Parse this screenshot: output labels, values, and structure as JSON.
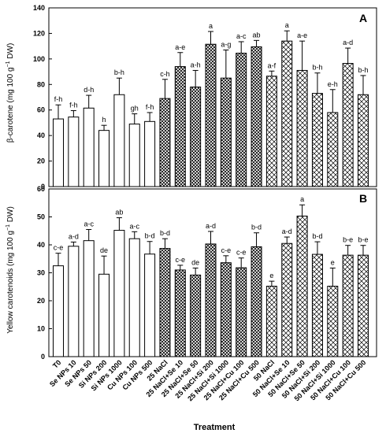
{
  "colors": {
    "axis": "#000000",
    "bar_fill": "#ffffff",
    "pattern": "#000000"
  },
  "fill_groups": [
    "open",
    "open",
    "open",
    "open",
    "open",
    "open",
    "open",
    "dense-crosshatch",
    "dense-crosshatch",
    "dense-crosshatch",
    "dense-crosshatch",
    "dense-crosshatch",
    "dense-crosshatch",
    "dense-crosshatch",
    "sparse-crosshatch",
    "sparse-crosshatch",
    "sparse-crosshatch",
    "sparse-crosshatch",
    "sparse-crosshatch",
    "sparse-crosshatch",
    "sparse-crosshatch"
  ],
  "chart_data": [
    {
      "type": "bar",
      "panel_label": "A",
      "ylabel_main": "β-carotene (mg 100 g",
      "ylabel_sup": "−1",
      "ylabel_tail": " DW)",
      "ylim": [
        0,
        140
      ],
      "yticks": [
        "0",
        "20",
        "40",
        "60",
        "80",
        "100",
        "120",
        "140"
      ],
      "tick_values": [
        0,
        20,
        40,
        60,
        80,
        100,
        120,
        140
      ],
      "categories": [
        "T0",
        "Se NPs 10",
        "Se NPs 50",
        "Si NPs 200",
        "Si NPs 1000",
        "Cu NPs 100",
        "Cu NPs 500",
        "25 NaCl",
        "25 NaCl+Se 10",
        "25 NaCl+Se 50",
        "25 NaCl+Si 200",
        "25 NaCl+Si 1000",
        "25 NaCl+Cu 100",
        "25 NaCl+Cu 500",
        "50 NaCl",
        "50 NaCl+Se 10",
        "50 NaCl+Se 50",
        "50 NaCl+Si 200",
        "50 NaCl+Si 1000",
        "50 NaCl+Cu 100",
        "50 NaCl+Cu 500"
      ],
      "values": [
        53,
        54.5,
        61.5,
        44,
        72,
        49,
        51,
        69,
        94,
        78,
        111.5,
        85,
        104.5,
        109.5,
        86.5,
        114,
        91,
        73,
        58,
        96.5,
        72
      ],
      "errors": [
        11,
        5,
        10,
        4,
        13,
        8,
        7,
        15,
        11,
        13,
        10,
        22,
        9,
        5,
        4,
        8,
        23,
        16,
        18,
        12,
        15
      ],
      "letters": [
        "f-h",
        "f-h",
        "d-h",
        "h",
        "b-h",
        "gh",
        "f-h",
        "c-h",
        "a-e",
        "a-h",
        "a",
        "a-g",
        "a-c",
        "ab",
        "a-f",
        "a",
        "a-e",
        "b-h",
        "e-h",
        "a-d",
        "b-h"
      ]
    },
    {
      "type": "bar",
      "panel_label": "B",
      "ylabel_main": "Yellow carotenoids (mg 100 g",
      "ylabel_sup": "−1",
      "ylabel_tail": " DW)",
      "xlabel": "Treatment",
      "ylim": [
        0,
        60
      ],
      "yticks": [
        "0",
        "10",
        "20",
        "30",
        "40",
        "50",
        "60"
      ],
      "tick_values": [
        0,
        10,
        20,
        30,
        40,
        50,
        60
      ],
      "categories": [
        "T0",
        "Se NPs 10",
        "Se NPs 50",
        "Si NPs 200",
        "Si NPs 1000",
        "Cu NPs 100",
        "Cu NPs 500",
        "25 NaCl",
        "25 NaCl+Se 10",
        "25 NaCl+Se 50",
        "25 NaCl+Si 200",
        "25 NaCl+Si 1000",
        "25 NaCl+Cu 100",
        "25 NaCl+Cu 500",
        "50 NaCl",
        "50 NaCl+Se 10",
        "50 NaCl+Se 50",
        "50 NaCl+Si 200",
        "50 NaCl+Si 1000",
        "50 NaCl+Cu 100",
        "50 NaCl+Cu 500"
      ],
      "values": [
        32.5,
        39.5,
        41.5,
        29.5,
        45.2,
        42.2,
        36.7,
        38.7,
        31,
        29.2,
        40.3,
        33.6,
        31.8,
        39.3,
        25.2,
        40.5,
        50.3,
        36.6,
        25.2,
        36.3,
        36.3
      ],
      "errors": [
        4.5,
        1.5,
        4,
        6.5,
        4.5,
        2.5,
        4.5,
        3.5,
        1.7,
        2.5,
        4.5,
        2.5,
        3.5,
        5,
        1.8,
        2.3,
        4,
        4.5,
        6.5,
        3.5,
        3.5
      ],
      "letters": [
        "c-e",
        "a-d",
        "a-c",
        "de",
        "ab",
        "a-c",
        "b-d",
        "b-d",
        "c-e",
        "de",
        "a-d",
        "c-e",
        "c-e",
        "b-d",
        "e",
        "a-d",
        "a",
        "b-d",
        "e",
        "b-e",
        "b-e"
      ]
    }
  ]
}
